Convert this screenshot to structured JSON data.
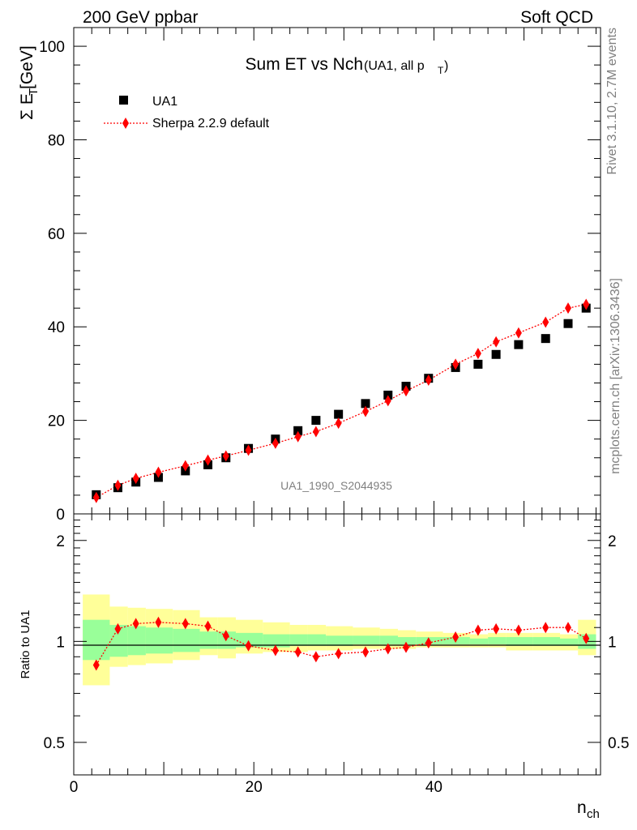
{
  "header": {
    "left_text": "200 GeV ppbar",
    "right_text": "Soft QCD"
  },
  "side_labels": {
    "rivet": "Rivet 3.1.10,  2.7M events",
    "site": "mcplots.cern.ch [arXiv:1306.3436]"
  },
  "main_panel": {
    "title_main": "Sum ET vs Nch",
    "title_sub": "(UA1, all p",
    "title_sub_index": "T",
    "title_sub_close": ")",
    "ylabel_prefix": "Σ E",
    "ylabel_index": "T",
    "ylabel_suffix": " [GeV]",
    "watermark": "UA1_1990_S2044935",
    "legend": [
      {
        "label": "UA1",
        "color": "#000000",
        "marker": "square"
      },
      {
        "label": "Sherpa 2.2.9 default",
        "color": "#ff0000",
        "marker": "diamond"
      }
    ]
  },
  "ratio_panel": {
    "ylabel": "Ratio to UA1"
  },
  "xaxis": {
    "label_main": "n",
    "label_index": "ch"
  },
  "chart_data": [
    {
      "type": "scatter",
      "title": "Sum ET vs Nch(UA1, all pT)",
      "xlabel": "nch",
      "ylabel": "Σ ET [GeV]",
      "xlim": [
        0,
        58.5
      ],
      "ylim": [
        0,
        104
      ],
      "xticks": [
        0,
        20,
        40
      ],
      "yticks": [
        0,
        20,
        40,
        60,
        80,
        100
      ],
      "legend_position": "top-left",
      "series": [
        {
          "name": "UA1",
          "color": "#000000",
          "x": [
            2.5,
            4.9,
            6.9,
            9.4,
            12.4,
            14.9,
            16.9,
            19.4,
            22.4,
            24.9,
            26.9,
            29.4,
            32.4,
            34.9,
            36.9,
            39.4,
            42.4,
            44.9,
            46.9,
            49.4,
            52.4,
            54.9,
            56.9
          ],
          "y": [
            4.1,
            5.6,
            6.8,
            7.8,
            9.2,
            10.5,
            12.0,
            14.0,
            16.0,
            17.8,
            20.0,
            21.3,
            23.6,
            25.4,
            27.3,
            29.0,
            31.3,
            32.0,
            34.1,
            36.2,
            37.5,
            40.7,
            44.0
          ]
        },
        {
          "name": "Sherpa 2.2.9 default",
          "color": "#ff0000",
          "x": [
            2.5,
            4.9,
            6.9,
            9.4,
            12.4,
            14.9,
            16.9,
            19.4,
            22.4,
            24.9,
            26.9,
            29.4,
            32.4,
            34.9,
            36.9,
            39.4,
            42.4,
            44.9,
            46.9,
            49.4,
            52.4,
            54.9,
            56.9
          ],
          "y": [
            3.5,
            6.1,
            7.6,
            8.9,
            10.3,
            11.5,
            12.4,
            13.6,
            15.1,
            16.5,
            17.6,
            19.4,
            21.9,
            24.2,
            26.3,
            28.6,
            32.0,
            34.3,
            36.8,
            38.7,
            41.0,
            44.0,
            44.8
          ]
        }
      ]
    },
    {
      "type": "line",
      "ylabel": "Ratio to UA1",
      "xlabel": "nch",
      "xlim": [
        0,
        58.5
      ],
      "ylim": [
        0.4,
        2.4
      ],
      "log_y": true,
      "yticks": [
        0.5,
        1,
        2
      ],
      "bin_edges": [
        1,
        4,
        6,
        8,
        11,
        14,
        16,
        18,
        21,
        24,
        26,
        28,
        31,
        34,
        36,
        38,
        41,
        44,
        46,
        48,
        51,
        54,
        56,
        58
      ],
      "band_total_lower": [
        0.74,
        0.84,
        0.85,
        0.86,
        0.88,
        0.91,
        0.89,
        0.92,
        0.93,
        0.93,
        0.94,
        0.94,
        0.95,
        0.95,
        0.95,
        0.96,
        0.96,
        0.96,
        0.96,
        0.94,
        0.94,
        0.94,
        0.91
      ],
      "band_total_upper": [
        1.38,
        1.27,
        1.26,
        1.25,
        1.24,
        1.18,
        1.18,
        1.16,
        1.14,
        1.12,
        1.12,
        1.11,
        1.1,
        1.09,
        1.08,
        1.07,
        1.06,
        1.05,
        1.06,
        1.06,
        1.06,
        1.05,
        1.16
      ],
      "band_stat_lower": [
        0.88,
        0.9,
        0.91,
        0.92,
        0.93,
        0.95,
        0.95,
        0.96,
        0.96,
        0.97,
        0.97,
        0.97,
        0.98,
        0.98,
        0.98,
        0.98,
        0.98,
        0.98,
        0.98,
        0.97,
        0.97,
        0.97,
        0.95
      ],
      "band_stat_upper": [
        1.16,
        1.12,
        1.11,
        1.1,
        1.09,
        1.07,
        1.07,
        1.06,
        1.05,
        1.05,
        1.05,
        1.04,
        1.04,
        1.04,
        1.03,
        1.03,
        1.03,
        1.02,
        1.03,
        1.03,
        1.03,
        1.02,
        1.05
      ],
      "band_colors": {
        "total": "#ffff99",
        "stat": "#99ff99"
      },
      "series": [
        {
          "name": "Sherpa 2.2.9 default",
          "color": "#ff0000",
          "x": [
            2.5,
            4.9,
            6.9,
            9.4,
            12.4,
            14.9,
            16.9,
            19.4,
            22.4,
            24.9,
            26.9,
            29.4,
            32.4,
            34.9,
            36.9,
            39.4,
            42.4,
            44.9,
            46.9,
            49.4,
            52.4,
            54.9,
            56.9
          ],
          "y": [
            0.85,
            1.09,
            1.13,
            1.14,
            1.13,
            1.11,
            1.04,
            0.97,
            0.94,
            0.93,
            0.9,
            0.92,
            0.93,
            0.95,
            0.96,
            0.99,
            1.03,
            1.08,
            1.09,
            1.08,
            1.1,
            1.1,
            1.02
          ]
        }
      ]
    }
  ]
}
